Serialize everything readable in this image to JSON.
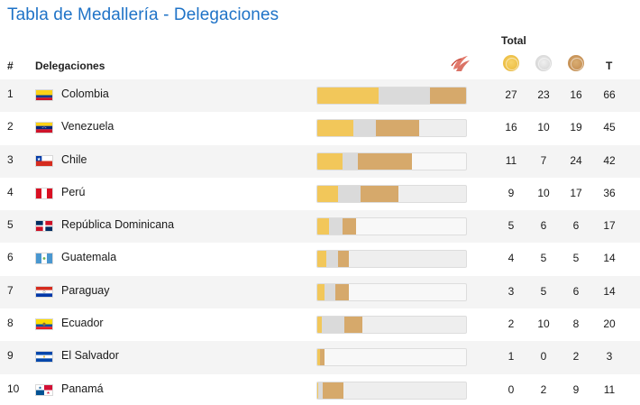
{
  "page": {
    "title": "Tabla de Medallería - Delegaciones"
  },
  "header": {
    "total_label": "Total",
    "rank_label": "#",
    "delegation_label": "Delegaciones",
    "total_col_label": "T",
    "icons": [
      "sport-icon",
      "gold-medal-icon",
      "silver-medal-icon",
      "bronze-medal-icon"
    ]
  },
  "colors": {
    "title": "#1f73c7",
    "gold": "#f2c75a",
    "silver": "#dadada",
    "bronze": "#d6a96b"
  },
  "rows": [
    {
      "rank": "1",
      "name": "Colombia",
      "flag": "colombia",
      "gold": 27,
      "silver": 23,
      "bronze": 16,
      "total": 66
    },
    {
      "rank": "2",
      "name": "Venezuela",
      "flag": "venezuela",
      "gold": 16,
      "silver": 10,
      "bronze": 19,
      "total": 45
    },
    {
      "rank": "3",
      "name": "Chile",
      "flag": "chile",
      "gold": 11,
      "silver": 7,
      "bronze": 24,
      "total": 42
    },
    {
      "rank": "4",
      "name": "Perú",
      "flag": "peru",
      "gold": 9,
      "silver": 10,
      "bronze": 17,
      "total": 36
    },
    {
      "rank": "5",
      "name": "República Dominicana",
      "flag": "dominican",
      "gold": 5,
      "silver": 6,
      "bronze": 6,
      "total": 17
    },
    {
      "rank": "6",
      "name": "Guatemala",
      "flag": "guatemala",
      "gold": 4,
      "silver": 5,
      "bronze": 5,
      "total": 14
    },
    {
      "rank": "7",
      "name": "Paraguay",
      "flag": "paraguay",
      "gold": 3,
      "silver": 5,
      "bronze": 6,
      "total": 14
    },
    {
      "rank": "8",
      "name": "Ecuador",
      "flag": "ecuador",
      "gold": 2,
      "silver": 10,
      "bronze": 8,
      "total": 20
    },
    {
      "rank": "9",
      "name": "El Salvador",
      "flag": "elsalvador",
      "gold": 1,
      "silver": 0,
      "bronze": 2,
      "total": 3
    },
    {
      "rank": "10",
      "name": "Panamá",
      "flag": "panama",
      "gold": 0,
      "silver": 2,
      "bronze": 9,
      "total": 11
    }
  ],
  "bar_scale_max": 66
}
